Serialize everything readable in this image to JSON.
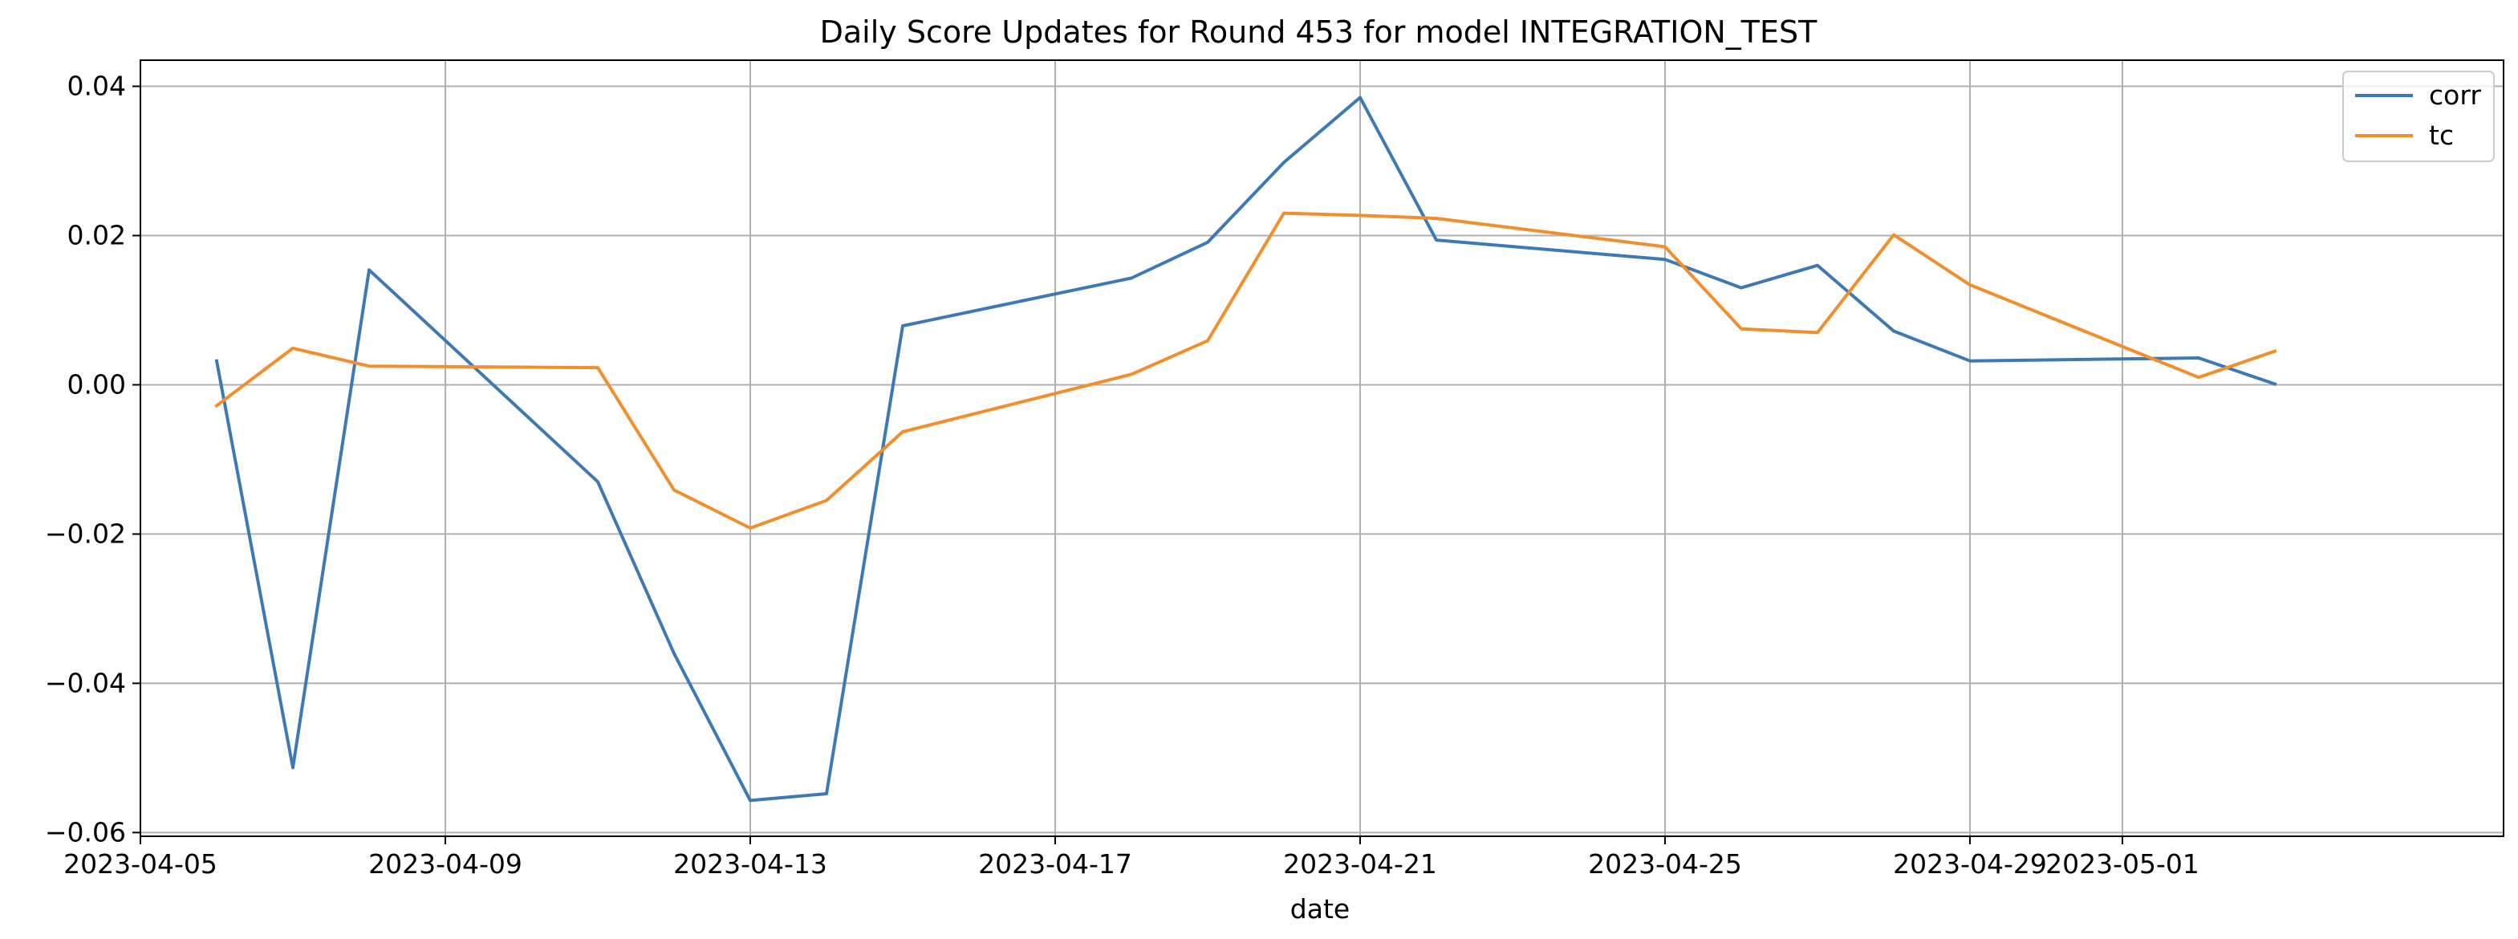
{
  "chart_data": {
    "type": "line",
    "title": "Daily Score Updates for Round 453 for model INTEGRATION_TEST",
    "xlabel": "date",
    "ylabel": "",
    "x_type": "date",
    "xlim": [
      "2023-04-05",
      "2023-05-06"
    ],
    "ylim": [
      -0.0605,
      0.0435
    ],
    "x_ticks": [
      "2023-04-05",
      "2023-04-09",
      "2023-04-13",
      "2023-04-17",
      "2023-04-21",
      "2023-04-25",
      "2023-04-29",
      "2023-05-01"
    ],
    "x_tick_labels": [
      "2023-04-05",
      "2023-04-09",
      "2023-04-13",
      "2023-04-17",
      "2023-04-21",
      "2023-04-25",
      "2023-04-29",
      "2023-05-01"
    ],
    "y_ticks": [
      -0.06,
      -0.04,
      -0.02,
      0.0,
      0.02,
      0.04
    ],
    "y_tick_labels": [
      "−0.06",
      "−0.04",
      "−0.02",
      "0.00",
      "0.02",
      "0.04"
    ],
    "grid": true,
    "legend_position": "top-right",
    "series": [
      {
        "name": "corr",
        "color": "#3d7ab5",
        "points": [
          {
            "x": "2023-04-06",
            "y": 0.0032
          },
          {
            "x": "2023-04-07",
            "y": -0.0513
          },
          {
            "x": "2023-04-08",
            "y": 0.0154
          },
          {
            "x": "2023-04-11",
            "y": -0.013
          },
          {
            "x": "2023-04-12",
            "y": -0.036
          },
          {
            "x": "2023-04-13",
            "y": -0.0557
          },
          {
            "x": "2023-04-14",
            "y": -0.0548
          },
          {
            "x": "2023-04-15",
            "y": 0.0079
          },
          {
            "x": "2023-04-18",
            "y": 0.0143
          },
          {
            "x": "2023-04-19",
            "y": 0.0191
          },
          {
            "x": "2023-04-20",
            "y": 0.0298
          },
          {
            "x": "2023-04-21",
            "y": 0.0385
          },
          {
            "x": "2023-04-22",
            "y": 0.0194
          },
          {
            "x": "2023-04-25",
            "y": 0.0168
          },
          {
            "x": "2023-04-26",
            "y": 0.013
          },
          {
            "x": "2023-04-27",
            "y": 0.016
          },
          {
            "x": "2023-04-28",
            "y": 0.0072
          },
          {
            "x": "2023-04-29",
            "y": 0.0032
          },
          {
            "x": "2023-05-02",
            "y": 0.0036
          },
          {
            "x": "2023-05-03",
            "y": 0.0001
          }
        ]
      },
      {
        "name": "tc",
        "color": "#f28e2b",
        "points": [
          {
            "x": "2023-04-06",
            "y": -0.0028
          },
          {
            "x": "2023-04-07",
            "y": 0.0049
          },
          {
            "x": "2023-04-08",
            "y": 0.0025
          },
          {
            "x": "2023-04-11",
            "y": 0.0023
          },
          {
            "x": "2023-04-12",
            "y": -0.0141
          },
          {
            "x": "2023-04-13",
            "y": -0.0192
          },
          {
            "x": "2023-04-14",
            "y": -0.0155
          },
          {
            "x": "2023-04-15",
            "y": -0.0063
          },
          {
            "x": "2023-04-18",
            "y": 0.0014
          },
          {
            "x": "2023-04-19",
            "y": 0.0059
          },
          {
            "x": "2023-04-20",
            "y": 0.023
          },
          {
            "x": "2023-04-21",
            "y": 0.0227
          },
          {
            "x": "2023-04-22",
            "y": 0.0223
          },
          {
            "x": "2023-04-25",
            "y": 0.0185
          },
          {
            "x": "2023-04-26",
            "y": 0.0075
          },
          {
            "x": "2023-04-27",
            "y": 0.007
          },
          {
            "x": "2023-04-28",
            "y": 0.0201
          },
          {
            "x": "2023-04-29",
            "y": 0.0134
          },
          {
            "x": "2023-05-02",
            "y": 0.001
          },
          {
            "x": "2023-05-03",
            "y": 0.0045
          }
        ]
      }
    ]
  }
}
